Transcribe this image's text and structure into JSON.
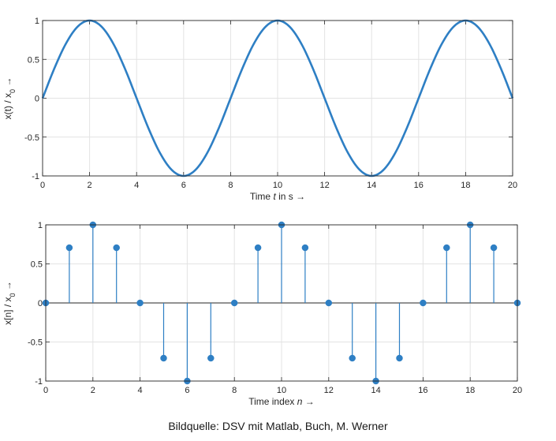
{
  "colors": {
    "series": "#2e7fc4",
    "grid": "#e3e3e3",
    "axis": "#262626"
  },
  "caption": "Bildquelle: DSV mit Matlab, Buch, M. Werner",
  "chart_data": [
    {
      "type": "line",
      "xlabel": "Time t in s →",
      "ylabel": "x(t) / x0 →",
      "xlim": [
        0,
        20
      ],
      "ylim": [
        -1,
        1
      ],
      "xticks": [
        0,
        2,
        4,
        6,
        8,
        10,
        12,
        14,
        16,
        18,
        20
      ],
      "yticks": [
        -1,
        -0.5,
        0,
        0.5,
        1
      ],
      "xtick_labels": [
        "0",
        "2",
        "4",
        "6",
        "8",
        "10",
        "12",
        "14",
        "16",
        "18",
        "20"
      ],
      "ytick_labels": [
        "-1",
        "-0.5",
        "0",
        "0.5",
        "1"
      ],
      "grid": true,
      "x": [
        0,
        0.5,
        1,
        1.5,
        2,
        2.5,
        3,
        3.5,
        4,
        4.5,
        5,
        5.5,
        6,
        6.5,
        7,
        7.5,
        8,
        8.5,
        9,
        9.5,
        10,
        10.5,
        11,
        11.5,
        12,
        12.5,
        13,
        13.5,
        14,
        14.5,
        15,
        15.5,
        16,
        16.5,
        17,
        17.5,
        18,
        18.5,
        19,
        19.5,
        20
      ],
      "values": [
        0,
        0.383,
        0.707,
        0.924,
        1,
        0.924,
        0.707,
        0.383,
        0,
        -0.383,
        -0.707,
        -0.924,
        -1,
        -0.924,
        -0.707,
        -0.383,
        0,
        0.383,
        0.707,
        0.924,
        1,
        0.924,
        0.707,
        0.383,
        0,
        -0.383,
        -0.707,
        -0.924,
        -1,
        -0.924,
        -0.707,
        -0.383,
        0,
        0.383,
        0.707,
        0.924,
        1,
        0.924,
        0.707,
        0.383,
        0
      ]
    },
    {
      "type": "scatter",
      "style": "stem",
      "xlabel": "Time index n →",
      "ylabel": "x[n] / x0 →",
      "xlim": [
        0,
        20
      ],
      "ylim": [
        -1,
        1
      ],
      "xticks": [
        0,
        2,
        4,
        6,
        8,
        10,
        12,
        14,
        16,
        18,
        20
      ],
      "yticks": [
        -1,
        -0.5,
        0,
        0.5,
        1
      ],
      "xtick_labels": [
        "0",
        "2",
        "4",
        "6",
        "8",
        "10",
        "12",
        "14",
        "16",
        "18",
        "20"
      ],
      "ytick_labels": [
        "-1",
        "-0.5",
        "0",
        "0.5",
        "1"
      ],
      "grid": true,
      "x": [
        0,
        1,
        2,
        3,
        4,
        5,
        6,
        7,
        8,
        9,
        10,
        11,
        12,
        13,
        14,
        15,
        16,
        17,
        18,
        19,
        20
      ],
      "values": [
        0,
        0.707,
        1,
        0.707,
        0,
        -0.707,
        -1,
        -0.707,
        0,
        0.707,
        1,
        0.707,
        0,
        -0.707,
        -1,
        -0.707,
        0,
        0.707,
        1,
        0.707,
        0
      ]
    }
  ]
}
